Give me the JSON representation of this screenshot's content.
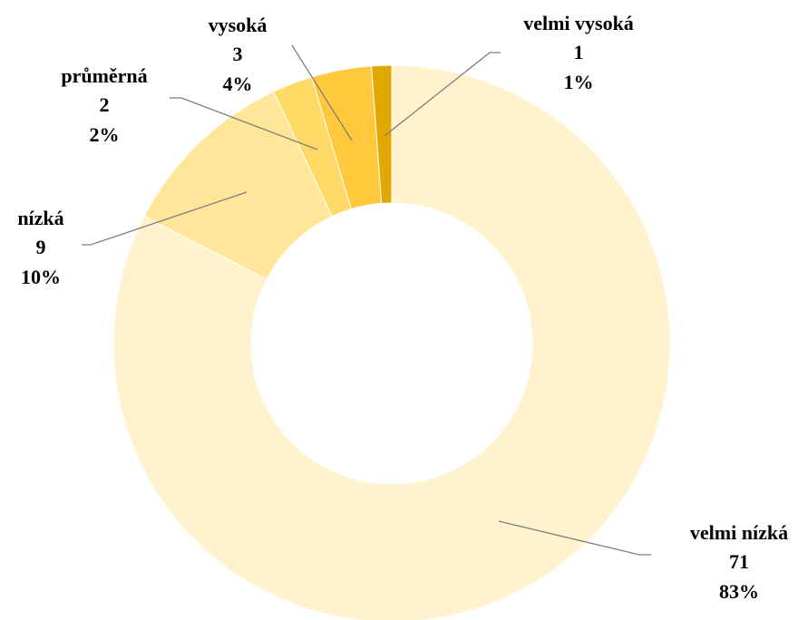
{
  "chart_data": {
    "type": "donut",
    "categories": [
      "velmi nízká",
      "nízká",
      "průměrná",
      "vysoká",
      "velmi vysoká"
    ],
    "values": [
      71,
      9,
      2,
      3,
      1
    ],
    "percent_labels": [
      "83%",
      "10%",
      "2%",
      "4%",
      "1%"
    ],
    "colors": [
      "#fff2cc",
      "#ffe699",
      "#ffd966",
      "#ffc83d",
      "#e0a800"
    ]
  }
}
